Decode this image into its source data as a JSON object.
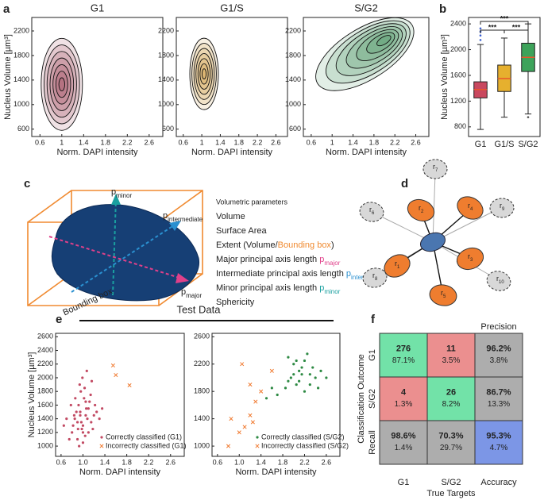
{
  "panel_labels": [
    "a",
    "b",
    "c",
    "d",
    "e",
    "f"
  ],
  "chart_data": [
    {
      "type": "density",
      "title": "G1",
      "ylabel": "Nucleus Volume [µm³]",
      "xlabel": "Norm. DAPI intensity",
      "xlim": [
        0.45,
        2.85
      ],
      "ylim": [
        480,
        2420
      ],
      "xticks": [
        0.6,
        1,
        1.4,
        1.8,
        2.2,
        2.6
      ],
      "yticks": [
        600,
        1000,
        1400,
        1800,
        2200
      ],
      "peak": [
        1.0,
        1330
      ],
      "color": "#8c1d35"
    },
    {
      "type": "density",
      "title": "G1/S",
      "xlabel": "Norm. DAPI intensity",
      "xlim": [
        0.45,
        2.85
      ],
      "ylim": [
        480,
        2420
      ],
      "xticks": [
        0.6,
        1,
        1.4,
        1.8,
        2.2,
        2.6
      ],
      "yticks": [
        600,
        1000,
        1400,
        1800,
        2200
      ],
      "peak": [
        1.05,
        1500
      ],
      "color": "#c98a1e"
    },
    {
      "type": "density",
      "title": "S/G2",
      "xlabel": "Norm. DAPI intensity",
      "xlim": [
        0.45,
        2.85
      ],
      "ylim": [
        480,
        2420
      ],
      "xticks": [
        0.6,
        1,
        1.4,
        1.8,
        2.2,
        2.6
      ],
      "yticks": [
        600,
        1000,
        1400,
        1800,
        2200
      ],
      "peak": [
        2.05,
        2080
      ],
      "color": "#1f7a3e"
    },
    {
      "type": "box",
      "ylabel": "Nucleus Volume [µm³]",
      "categories": [
        "G1",
        "G1/S",
        "S/G2"
      ],
      "ylim": [
        650,
        2500
      ],
      "yticks": [
        800,
        1200,
        1600,
        2000,
        2400
      ],
      "colors": [
        "#c9485f",
        "#e6b02e",
        "#3da35a"
      ],
      "median_color": "#e8562a",
      "boxes": [
        {
          "low": 760,
          "q1": 1250,
          "median": 1380,
          "q3": 1500,
          "high": 2080
        },
        {
          "low": 950,
          "q1": 1350,
          "median": 1550,
          "q3": 1760,
          "high": 2180
        },
        {
          "low": 1000,
          "q1": 1660,
          "median": 1880,
          "q3": 2100,
          "high": 2400
        }
      ],
      "outliers": [
        [
          2150,
          2220,
          2280,
          2330
        ],
        [],
        [
          950
        ]
      ],
      "significance": [
        "***",
        "***",
        "***"
      ]
    },
    {
      "type": "scatter",
      "suptitle": "Test Data",
      "ylabel": "Nucleus Volume [µm³]",
      "xlabel": "Norm. DAPI intensity",
      "xlim": [
        0.5,
        2.85
      ],
      "ylim": [
        850,
        2650
      ],
      "xticks": [
        0.6,
        {
          "value": 1,
          "label": "1.0"
        },
        1.4,
        1.8,
        2.2,
        2.6
      ],
      "yticks": [
        1000,
        1200,
        1400,
        1600,
        1800,
        2000,
        2200,
        2400,
        2600
      ],
      "legend": "lower right",
      "series": [
        {
          "name": "Correctly classified (G1)",
          "color": "#c24a63",
          "marker": "dot",
          "x": [
            0.85,
            0.9,
            0.95,
            1.0,
            1.05,
            1.1,
            0.8,
            0.92,
            0.98,
            1.02,
            1.08,
            1.15,
            0.75,
            0.88,
            0.96,
            1.04,
            1.12,
            1.2,
            0.82,
            0.94,
            1.0,
            1.06,
            1.18,
            0.7,
            0.86,
            0.99,
            1.1,
            1.25,
            0.9,
            1.03,
            0.78,
            0.93,
            1.14,
            1.3,
            0.97,
            1.07,
            0.84,
            1.22,
            0.65,
            1.35,
            1.0,
            0.91,
            1.16,
            1.05,
            0.95
          ],
          "y": [
            1400,
            1350,
            1500,
            1300,
            1450,
            1550,
            1200,
            1600,
            1250,
            1700,
            1400,
            1350,
            1100,
            1500,
            1800,
            1150,
            1650,
            1450,
            1300,
            1900,
            1050,
            1550,
            1250,
            1400,
            1700,
            2000,
            1200,
            1500,
            1100,
            1850,
            1600,
            1000,
            1750,
            1400,
            1350,
            2100,
            1450,
            1600,
            1300,
            1550,
            1200,
            1250,
            1950,
            1650,
            1450
          ]
        },
        {
          "name": "Incorrectly classified (G1)",
          "color": "#f07a30",
          "marker": "x",
          "x": [
            1.55,
            1.6,
            1.85
          ],
          "y": [
            2180,
            2040,
            1890
          ]
        }
      ]
    },
    {
      "type": "scatter",
      "xlabel": "Norm. DAPI intensity",
      "xlim": [
        0.5,
        2.85
      ],
      "ylim": [
        850,
        2650
      ],
      "xticks": [
        0.6,
        {
          "value": 1,
          "label": "1.0"
        },
        1.4,
        1.8,
        2.2,
        2.6
      ],
      "yticks": [
        1000,
        1400,
        1800,
        2200,
        2600
      ],
      "legend": "lower right",
      "series": [
        {
          "name": "Correctly classified (S/G2)",
          "color": "#2e8a44",
          "marker": "dot",
          "x": [
            1.9,
            2.0,
            2.1,
            2.2,
            2.3,
            1.95,
            2.05,
            2.15,
            2.25,
            2.4,
            1.85,
            2.0,
            2.1,
            2.2,
            2.35,
            1.6,
            1.7,
            2.5,
            2.6,
            2.05,
            1.5,
            2.15,
            2.3,
            1.9,
            2.45
          ],
          "y": [
            2300,
            2200,
            2100,
            2250,
            2050,
            2000,
            1900,
            2150,
            2350,
            2000,
            1850,
            2050,
            1950,
            1800,
            2150,
            1850,
            1750,
            2100,
            2000,
            2250,
            1700,
            2050,
            1900,
            1950,
            1850
          ]
        },
        {
          "name": "Incorrectly classified (S/G2)",
          "color": "#f07a30",
          "marker": "x",
          "x": [
            1.05,
            0.85,
            1.2,
            1.3,
            0.8,
            1.0,
            1.25,
            1.4,
            1.6,
            1.2,
            1.1
          ],
          "y": [
            2200,
            1400,
            1450,
            1650,
            1000,
            1200,
            1350,
            1800,
            2100,
            1900,
            1280
          ]
        }
      ]
    }
  ],
  "diagram_c": {
    "title": "Volumetric parameters",
    "items": [
      {
        "parts": [
          {
            "text": "Volume"
          }
        ]
      },
      {
        "parts": [
          {
            "text": "Surface Area"
          }
        ]
      },
      {
        "parts": [
          {
            "text": "Extent (Volume/"
          },
          {
            "text": "Bounding box",
            "color": "#f08a30"
          },
          {
            "text": ")"
          }
        ]
      },
      {
        "parts": [
          {
            "text": "Major principal axis length "
          },
          {
            "text": "p",
            "color": "#e0408a"
          },
          {
            "text": "major",
            "color": "#e0408a",
            "sub": true
          }
        ]
      },
      {
        "parts": [
          {
            "text": "Intermediate principal axis length "
          },
          {
            "text": "p",
            "color": "#2a90d0"
          },
          {
            "text": "intermediate",
            "color": "#2a90d0",
            "sub": true
          }
        ]
      },
      {
        "parts": [
          {
            "text": "Minor principal axis length "
          },
          {
            "text": "p",
            "color": "#1aa0a0"
          },
          {
            "text": "minor",
            "color": "#1aa0a0",
            "sub": true
          }
        ]
      },
      {
        "parts": [
          {
            "text": "Sphericity"
          }
        ]
      }
    ],
    "axis_labels": [
      {
        "text": "p",
        "sub": "minor",
        "color": "#1aa0a0"
      },
      {
        "text": "p",
        "sub": "intermediate",
        "color": "#2a90d0"
      },
      {
        "text": "p",
        "sub": "major",
        "color": "#e0408a"
      }
    ],
    "box_label": "Bounding box"
  },
  "diagram_d": {
    "near": [
      {
        "text": "r",
        "sub": "1"
      },
      {
        "text": "r",
        "sub": "2"
      },
      {
        "text": "r",
        "sub": "3"
      },
      {
        "text": "r",
        "sub": "4"
      },
      {
        "text": "r",
        "sub": "5"
      }
    ],
    "far": [
      {
        "text": "r",
        "sub": "6"
      },
      {
        "text": "r",
        "sub": "7"
      },
      {
        "text": "r",
        "sub": "8"
      },
      {
        "text": "r",
        "sub": "9"
      },
      {
        "text": "r",
        "sub": "10"
      }
    ]
  },
  "table_f": {
    "precision_label": "Precision",
    "outcome_label": "Classification Outcome",
    "target_label": "True Targets",
    "row_labels": [
      "G1",
      "S/G2",
      "Recall"
    ],
    "col_labels": [
      "G1",
      "S/G2",
      "Accuracy"
    ],
    "cells": [
      [
        [
          "276",
          "87.1%"
        ],
        [
          "11",
          "3.5%"
        ],
        [
          "96.2%",
          "3.8%"
        ]
      ],
      [
        [
          "4",
          "1.3%"
        ],
        [
          "26",
          "8.2%"
        ],
        [
          "86.7%",
          "13.3%"
        ]
      ],
      [
        [
          "98.6%",
          "1.4%"
        ],
        [
          "70.3%",
          "29.7%"
        ],
        [
          "95.3%",
          "4.7%"
        ]
      ]
    ],
    "cell_colors": [
      [
        "#72e2a8",
        "#eb8f8f",
        "#adadad"
      ],
      [
        "#eb8f8f",
        "#72e2a8",
        "#adadad"
      ],
      [
        "#adadad",
        "#adadad",
        "#7c96e6"
      ]
    ]
  }
}
